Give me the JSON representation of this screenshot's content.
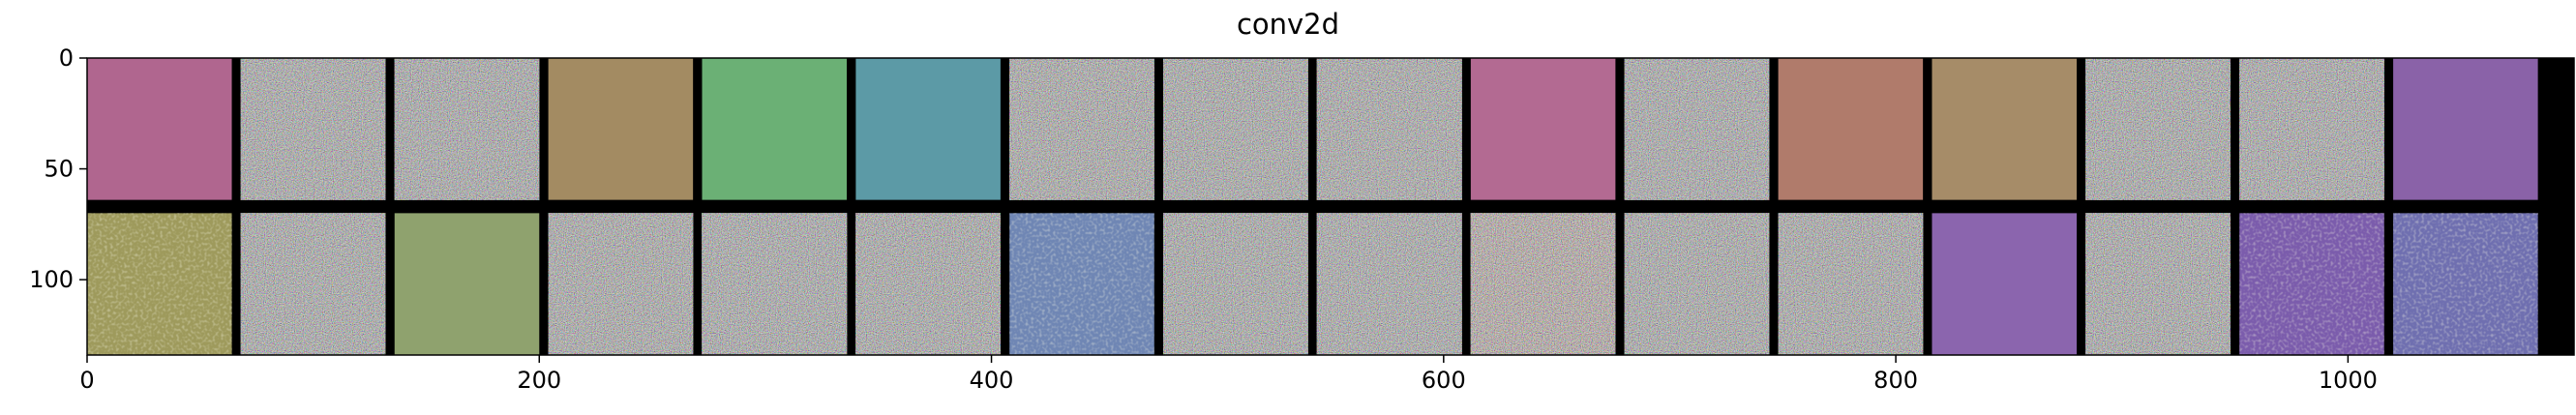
{
  "chart_data": {
    "type": "heatmap",
    "title": "conv2d",
    "xlabel": "",
    "ylabel": "",
    "xlim": [
      0,
      1100
    ],
    "ylim": [
      134,
      0
    ],
    "x_ticks": [
      0,
      200,
      400,
      600,
      800,
      1000
    ],
    "y_ticks": [
      0,
      50,
      100
    ],
    "grid": false,
    "tile_size": 64,
    "tile_stride": 68,
    "rows": 2,
    "cols": 16,
    "tiles": [
      [
        {
          "kind": "flat",
          "color": "#b0668f"
        },
        {
          "kind": "noise",
          "color": "#8c8c8c"
        },
        {
          "kind": "noise",
          "color": "#8b8b8d"
        },
        {
          "kind": "flat",
          "color": "#a38b62"
        },
        {
          "kind": "flat",
          "color": "#6bb075"
        },
        {
          "kind": "flat",
          "color": "#5c9aa6"
        },
        {
          "kind": "noise",
          "color": "#8e8c8b"
        },
        {
          "kind": "noise",
          "color": "#8c8d8c"
        },
        {
          "kind": "noise",
          "color": "#8d8c8c"
        },
        {
          "kind": "flat",
          "color": "#b36a92"
        },
        {
          "kind": "noise",
          "color": "#8c8c8e"
        },
        {
          "kind": "flat",
          "color": "#b07b6b"
        },
        {
          "kind": "flat",
          "color": "#a68c68"
        },
        {
          "kind": "noise",
          "color": "#8b8c8c"
        },
        {
          "kind": "noise",
          "color": "#8c8b8d"
        },
        {
          "kind": "flat",
          "color": "#8a62a8"
        }
      ],
      [
        {
          "kind": "textured",
          "color": "#9e9a5c"
        },
        {
          "kind": "noise",
          "color": "#8c8c8c"
        },
        {
          "kind": "flat",
          "color": "#8fa26e"
        },
        {
          "kind": "noise",
          "color": "#8d8c8b"
        },
        {
          "kind": "noise",
          "color": "#8b8c8d"
        },
        {
          "kind": "noise",
          "color": "#8c8c8c"
        },
        {
          "kind": "textured",
          "color": "#6f86b4"
        },
        {
          "kind": "noise",
          "color": "#8c8d8c"
        },
        {
          "kind": "noise",
          "color": "#8c8c8d"
        },
        {
          "kind": "noise",
          "color": "#a58a82"
        },
        {
          "kind": "noise",
          "color": "#8c8c8c"
        },
        {
          "kind": "noise",
          "color": "#8d8c8c"
        },
        {
          "kind": "flat",
          "color": "#8b65ae"
        },
        {
          "kind": "noise",
          "color": "#8c8c8c"
        },
        {
          "kind": "textured",
          "color": "#7b5cac"
        },
        {
          "kind": "textured",
          "color": "#6f6fb0"
        }
      ]
    ]
  }
}
